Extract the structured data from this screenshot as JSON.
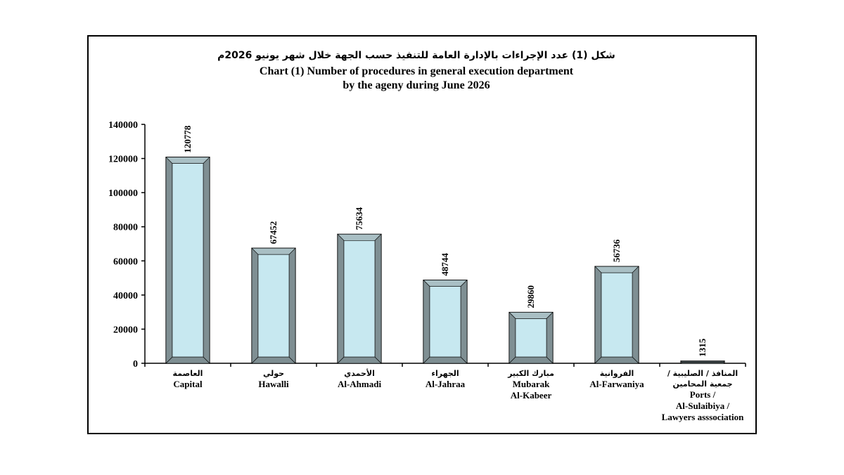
{
  "chart_data": {
    "type": "bar",
    "title": {
      "arabic": "شكل (1) عدد الإجراءات بالإدارة العامة للتنفيذ حسب الجهة خلال شهر يونيو 2026م",
      "english_line1": "Chart (1) Number of procedures in general execution department",
      "english_line2": "by the ageny during June 2026"
    },
    "categories": [
      {
        "ar": [
          "العاصمة"
        ],
        "en": [
          "Capital"
        ]
      },
      {
        "ar": [
          "حولي"
        ],
        "en": [
          "Hawalli"
        ]
      },
      {
        "ar": [
          "الأحمدي"
        ],
        "en": [
          "Al-Ahmadi"
        ]
      },
      {
        "ar": [
          "الجهراء"
        ],
        "en": [
          "Al-Jahraa"
        ]
      },
      {
        "ar": [
          "مبارك الكبير"
        ],
        "en": [
          "Mubarak",
          "Al-Kabeer"
        ]
      },
      {
        "ar": [
          "الفروانية"
        ],
        "en": [
          "Al-Farwaniya"
        ]
      },
      {
        "ar": [
          "المنافذ / الصليبية /",
          "جمعية المحامين"
        ],
        "en": [
          "Ports /",
          "Al-Sulaibiya /",
          "Lawyers asssociation"
        ]
      }
    ],
    "values": [
      120778,
      67452,
      75634,
      48744,
      29860,
      56736,
      1315
    ],
    "value_labels": [
      "120778",
      "67452",
      "75634",
      "48744",
      "29860",
      "56736",
      "1315"
    ],
    "ylim": [
      0,
      140000
    ],
    "yticks": [
      "0",
      "20000",
      "40000",
      "60000",
      "80000",
      "100000",
      "120000",
      "140000"
    ],
    "grid": false,
    "legend": "none",
    "colors": {
      "bar_face": "#c7e8f0",
      "bar_side": "#7f8f93",
      "bar_top": "#a9bfc4",
      "bar_edge": "#000000",
      "axis": "#000000"
    }
  }
}
